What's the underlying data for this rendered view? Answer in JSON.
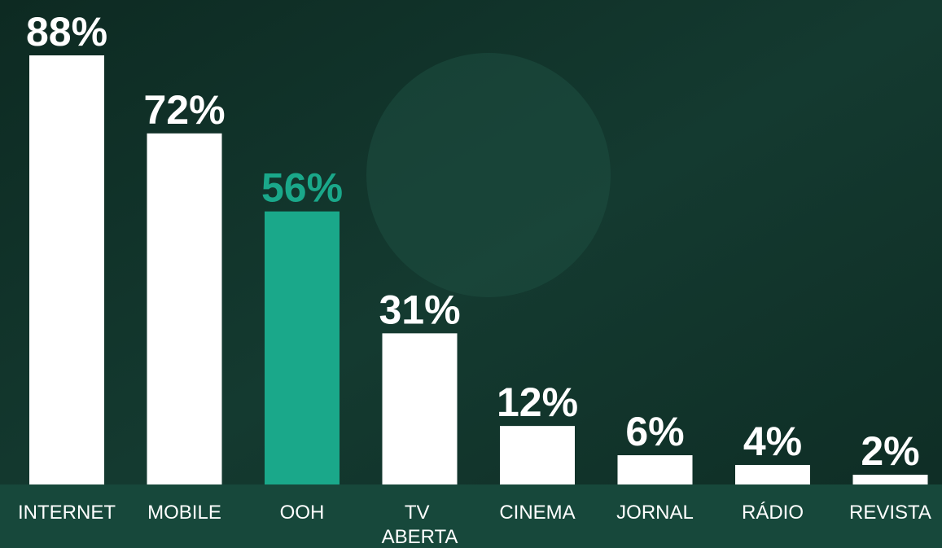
{
  "chart_data": {
    "type": "bar",
    "categories": [
      "INTERNET",
      "MOBILE",
      "OOH",
      "TV ABERTA",
      "CINEMA",
      "JORNAL",
      "RÁDIO",
      "REVISTA"
    ],
    "values": [
      88,
      72,
      56,
      31,
      12,
      6,
      4,
      2
    ],
    "value_labels": [
      "88%",
      "72%",
      "56%",
      "31%",
      "12%",
      "6%",
      "4%",
      "2%"
    ],
    "colors": [
      "#ffffff",
      "#ffffff",
      "#1aa88a",
      "#ffffff",
      "#ffffff",
      "#ffffff",
      "#ffffff",
      "#ffffff"
    ]
  }
}
